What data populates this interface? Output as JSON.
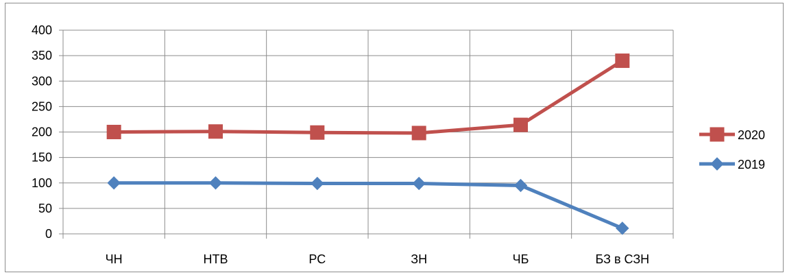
{
  "chart_data": {
    "type": "line",
    "categories": [
      "ЧН",
      "НТВ",
      "РС",
      "ЗН",
      "ЧБ",
      "БЗ в СЗН"
    ],
    "series": [
      {
        "name": "2020",
        "values": [
          200,
          201,
          199,
          198,
          214,
          340
        ],
        "color": "#c0504d",
        "marker": "square"
      },
      {
        "name": "2019",
        "values": [
          100,
          100,
          99,
          99,
          95,
          11
        ],
        "color": "#4f81bd",
        "marker": "diamond"
      }
    ],
    "ylim": [
      0,
      400
    ],
    "yticks": [
      0,
      50,
      100,
      150,
      200,
      250,
      300,
      350,
      400
    ],
    "grid": true,
    "legend": "right",
    "title": "",
    "xlabel": "",
    "ylabel": ""
  }
}
